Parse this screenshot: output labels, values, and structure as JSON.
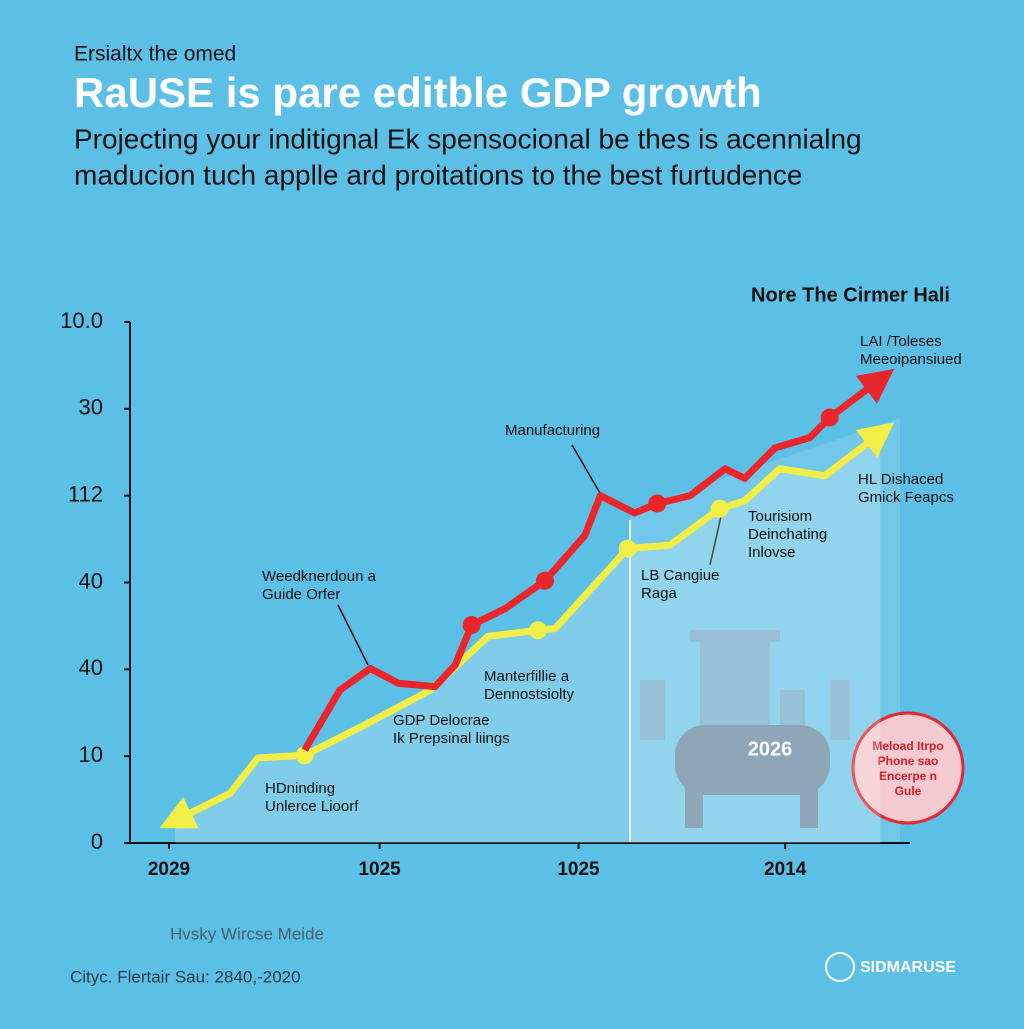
{
  "chart_data": {
    "type": "line",
    "eyebrow": "Ersialtx the omed",
    "title": "RaUSE is pare editble GDP growth",
    "subtitle": [
      "Projecting your inditignal Ek spensocional be thes is acennialng",
      "maducion tuch applle ard proitations to the best furtudence"
    ],
    "chart_title": "Nore The Cirmer Hali",
    "xlim": [
      0,
      10
    ],
    "ylim": [
      0,
      6
    ],
    "xticks": [
      {
        "value": 0.5,
        "label": "2029"
      },
      {
        "value": 3.2,
        "label": "1025"
      },
      {
        "value": 5.75,
        "label": "1025"
      },
      {
        "value": 8.4,
        "label": "2014"
      }
    ],
    "yticks": [
      0,
      {
        "value": 1,
        "label": "10"
      },
      {
        "value": 2,
        "label": "40"
      },
      {
        "value": 3,
        "label": "40"
      },
      {
        "value": 4,
        "label": "112"
      },
      {
        "value": 5,
        "label": "30"
      },
      {
        "value": 6,
        "label": "10.0"
      }
    ],
    "series": [
      {
        "color": "#f2ee48",
        "x": [
          0.58,
          1.28,
          1.64,
          2.24,
          3.01,
          3.85,
          4.59,
          5.23,
          5.45,
          6.38,
          6.92,
          7.56,
          7.88,
          8.33,
          8.91,
          9.62
        ],
        "values": [
          0.26,
          0.57,
          0.98,
          1.01,
          1.36,
          1.76,
          2.38,
          2.45,
          2.47,
          3.39,
          3.43,
          3.85,
          3.94,
          4.31,
          4.23,
          4.72
        ]
      },
      {
        "color": "#e8262b",
        "x": [
          2.24,
          2.69,
          3.08,
          3.44,
          3.91,
          4.17,
          4.38,
          4.81,
          5.32,
          5.83,
          6.03,
          6.47,
          6.76,
          7.18,
          7.63,
          7.88,
          8.27,
          8.72,
          8.97,
          9.62
        ],
        "values": [
          1.07,
          1.76,
          2.01,
          1.84,
          1.8,
          2.05,
          2.51,
          2.7,
          3.02,
          3.54,
          4.0,
          3.8,
          3.91,
          4.0,
          4.31,
          4.2,
          4.55,
          4.67,
          4.9,
          5.34
        ]
      }
    ],
    "annotations": [
      {
        "lines": [
          "LAI /Toleses",
          "Meeoipansiued"
        ]
      },
      {
        "lines": [
          "Manufacturing"
        ]
      },
      {
        "lines": [
          "HL Dishaced",
          "Gmick Feapcs"
        ]
      },
      {
        "lines": [
          "Tourisiom",
          "Deinchating",
          "Inlovse"
        ]
      },
      {
        "lines": [
          "LB Cangiue",
          "Raga"
        ]
      },
      {
        "lines": [
          "Weedknerdoun a",
          "Guide Orfer"
        ]
      },
      {
        "lines": [
          "Manterfillie a",
          "Dennostsiolty"
        ]
      },
      {
        "lines": [
          "GDP Delocrae",
          "Ik Prepsinal liings"
        ]
      },
      {
        "lines": [
          "HDninding",
          "Unlerce Lioorf"
        ]
      }
    ],
    "illustration_label": "2026",
    "badge": [
      "Meload Itrpo",
      "Phone sao",
      "Encerpe n",
      "Gule"
    ],
    "footer": [
      "Hvsky Wircse Meide",
      "Cityc. Flertair Sau: 2840,-2020"
    ],
    "logo": "SIDMARUSE"
  }
}
